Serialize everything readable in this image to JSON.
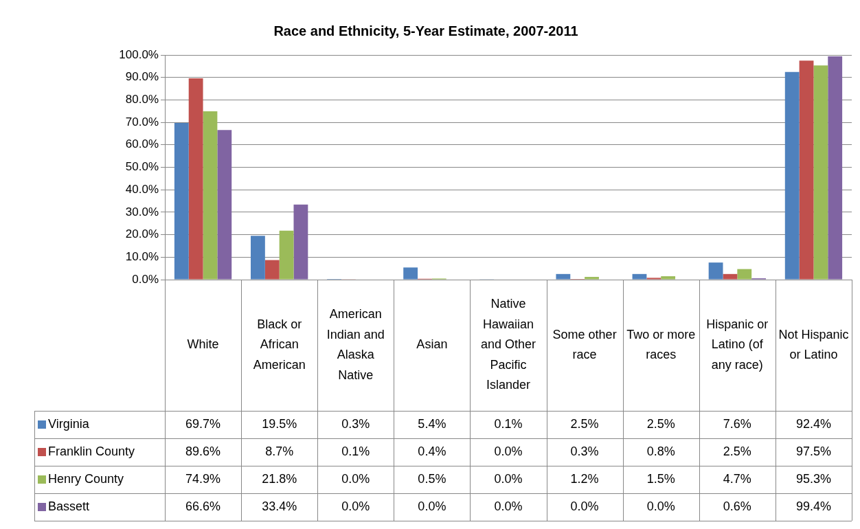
{
  "chart_data": {
    "type": "bar",
    "title": "Race and Ethnicity, 5-Year Estimate, 2007-2011",
    "categories": [
      "White",
      "Black or African American",
      "American Indian and Alaska Native",
      "Asian",
      "Native Hawaiian and Other Pacific Islander",
      "Some other race",
      "Two or more races",
      "Hispanic or Latino (of any race)",
      "Not Hispanic or Latino"
    ],
    "series": [
      {
        "name": "Virginia",
        "color": "#4f81bd",
        "values": [
          69.7,
          19.5,
          0.3,
          5.4,
          0.1,
          2.5,
          2.5,
          7.6,
          92.4
        ],
        "value_labels": [
          "69.7%",
          "19.5%",
          "0.3%",
          "5.4%",
          "0.1%",
          "2.5%",
          "2.5%",
          "7.6%",
          "92.4%"
        ]
      },
      {
        "name": "Franklin County",
        "color": "#c0504d",
        "values": [
          89.6,
          8.7,
          0.1,
          0.4,
          0.0,
          0.3,
          0.8,
          2.5,
          97.5
        ],
        "value_labels": [
          "89.6%",
          "8.7%",
          "0.1%",
          "0.4%",
          "0.0%",
          "0.3%",
          "0.8%",
          "2.5%",
          "97.5%"
        ]
      },
      {
        "name": "Henry County",
        "color": "#9bbb59",
        "values": [
          74.9,
          21.8,
          0.0,
          0.5,
          0.0,
          1.2,
          1.5,
          4.7,
          95.3
        ],
        "value_labels": [
          "74.9%",
          "21.8%",
          "0.0%",
          "0.5%",
          "0.0%",
          "1.2%",
          "1.5%",
          "4.7%",
          "95.3%"
        ]
      },
      {
        "name": "Bassett",
        "color": "#8064a2",
        "values": [
          66.6,
          33.4,
          0.0,
          0.0,
          0.0,
          0.0,
          0.0,
          0.6,
          99.4
        ],
        "value_labels": [
          "66.6%",
          "33.4%",
          "0.0%",
          "0.0%",
          "0.0%",
          "0.0%",
          "0.0%",
          "0.6%",
          "99.4%"
        ]
      }
    ],
    "ylim": [
      0,
      100
    ],
    "yticks": [
      {
        "value": 0,
        "label": "0.0%"
      },
      {
        "value": 10,
        "label": "10.0%"
      },
      {
        "value": 20,
        "label": "20.0%"
      },
      {
        "value": 30,
        "label": "30.0%"
      },
      {
        "value": 40,
        "label": "40.0%"
      },
      {
        "value": 50,
        "label": "50.0%"
      },
      {
        "value": 60,
        "label": "60.0%"
      },
      {
        "value": 70,
        "label": "70.0%"
      },
      {
        "value": 80,
        "label": "80.0%"
      },
      {
        "value": 90,
        "label": "90.0%"
      },
      {
        "value": 100,
        "label": "100.0%"
      }
    ],
    "grid": "y",
    "legend": "bottom left"
  }
}
